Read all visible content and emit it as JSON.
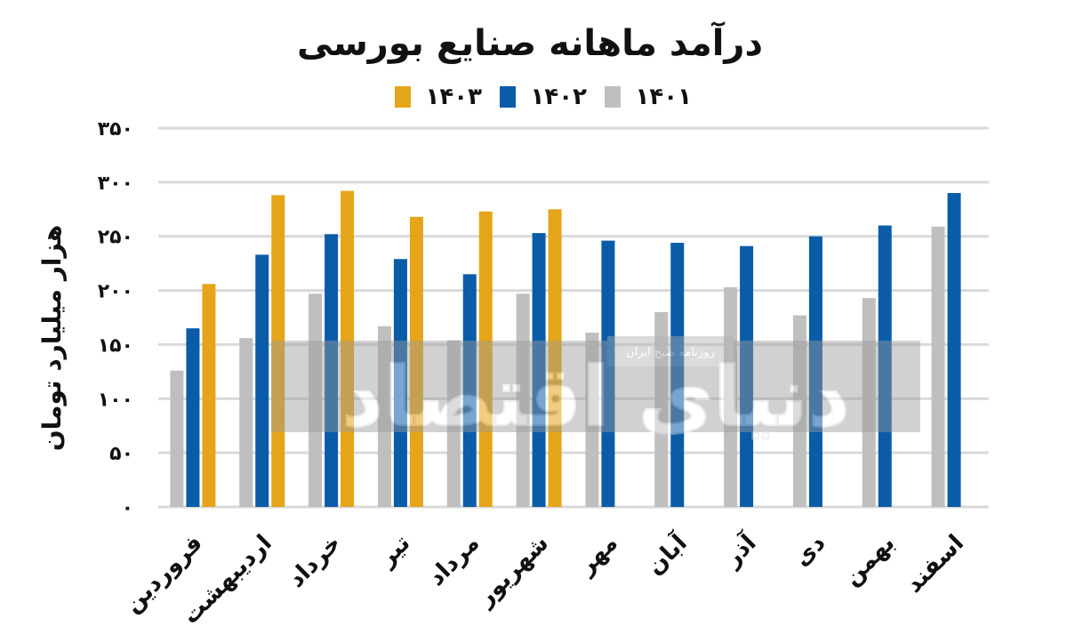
{
  "chart_data": {
    "type": "bar",
    "title": "درآمد ماهانه صنایع بورسی",
    "ylabel": "هزار میلیارد تومان",
    "xlabel": "",
    "ylim": [
      0,
      350
    ],
    "yticks": [
      0,
      50,
      100,
      150,
      200,
      250,
      300,
      350
    ],
    "ytick_labels": [
      "۰",
      "۵۰",
      "۱۰۰",
      "۱۵۰",
      "۲۰۰",
      "۲۵۰",
      "۳۰۰",
      "۳۵۰"
    ],
    "grid": true,
    "legend_position": "top",
    "categories": [
      "فروردین",
      "اردیبهشت",
      "خرداد",
      "تیر",
      "مرداد",
      "شهریور",
      "مهر",
      "آبان",
      "آذر",
      "دی",
      "بهمن",
      "اسفند"
    ],
    "series": [
      {
        "name": "۱۴۰۱",
        "color": "#bfbfbf",
        "values": [
          126,
          156,
          197,
          167,
          154,
          197,
          161,
          180,
          203,
          177,
          193,
          259
        ]
      },
      {
        "name": "۱۴۰۲",
        "color": "#0a5ca8",
        "values": [
          165,
          233,
          252,
          229,
          215,
          253,
          246,
          244,
          241,
          250,
          260,
          290
        ]
      },
      {
        "name": "۱۴۰۳",
        "color": "#e5a518",
        "values": [
          206,
          288,
          292,
          268,
          273,
          275,
          null,
          null,
          null,
          null,
          null,
          null
        ]
      }
    ]
  },
  "watermark": {
    "caption": "روزنامه صبح ایران",
    "logo_text": "دنیای اقتصاد"
  }
}
